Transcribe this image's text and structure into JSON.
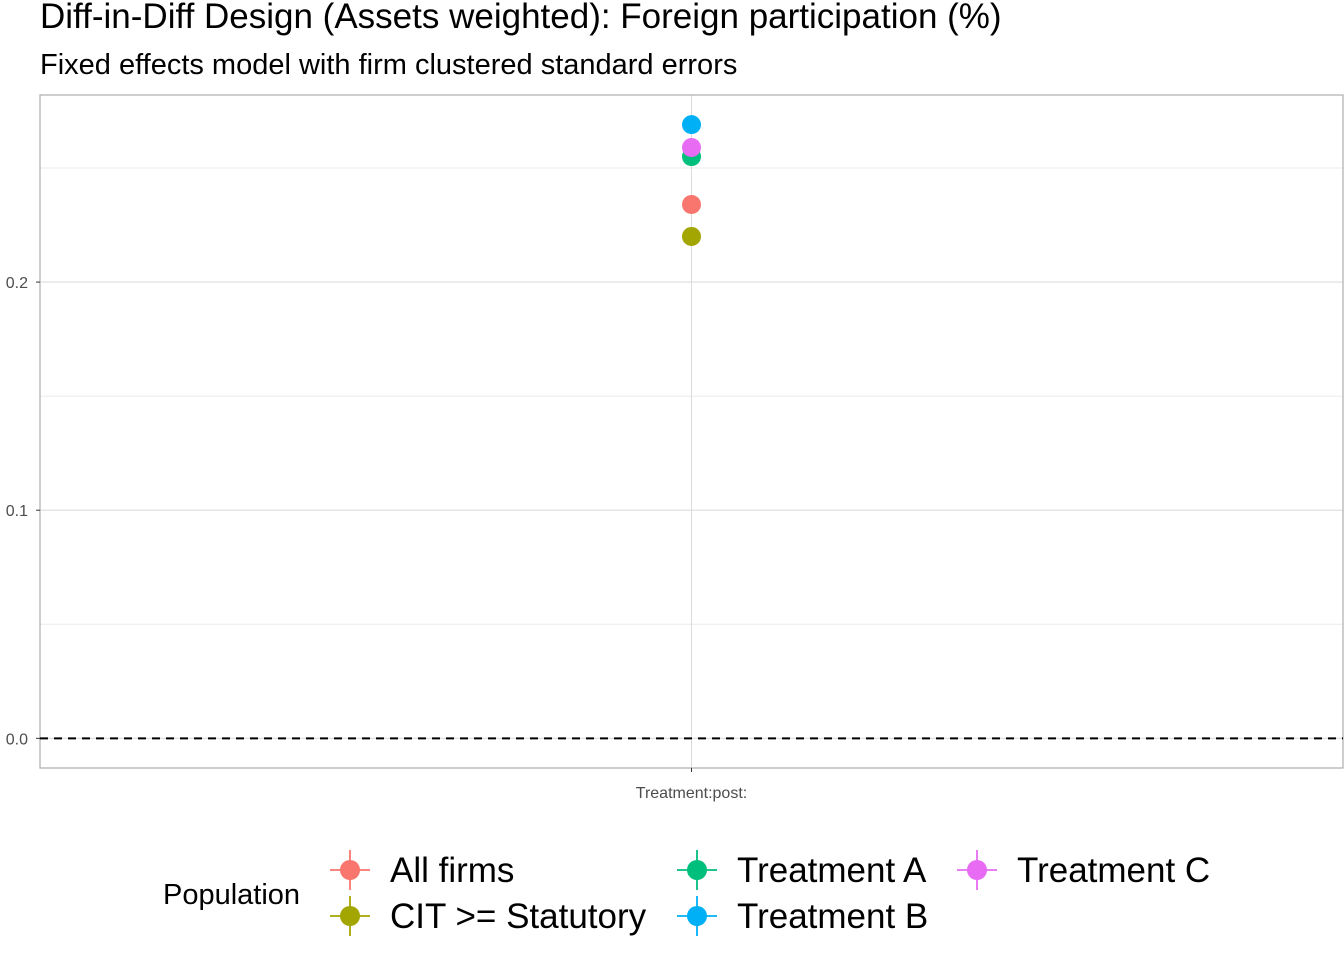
{
  "chart_data": {
    "type": "scatter",
    "title": "Diff-in-Diff Design (Assets weighted): Foreign participation (%)",
    "subtitle": "Fixed effects model with firm clustered standard errors",
    "xlabel": "",
    "ylabel": "",
    "categories": [
      "Treatment:post:"
    ],
    "ylim": [
      -0.013,
      0.282
    ],
    "yticks": [
      0.0,
      0.1,
      0.2
    ],
    "ytick_labels": [
      "0.0",
      "0.1",
      "0.2"
    ],
    "reference_line": {
      "y": 0.0,
      "style": "dashed",
      "color": "#000000"
    },
    "grid": true,
    "legend": {
      "title": "Population",
      "position": "bottom"
    },
    "series": [
      {
        "name": "All firms",
        "color": "#F8766D",
        "x": "Treatment:post:",
        "y": 0.234
      },
      {
        "name": "CIT >= Statutory",
        "color": "#A3A500",
        "x": "Treatment:post:",
        "y": 0.22
      },
      {
        "name": "Treatment A",
        "color": "#00BF7D",
        "x": "Treatment:post:",
        "y": 0.255
      },
      {
        "name": "Treatment B",
        "color": "#00B0F6",
        "x": "Treatment:post:",
        "y": 0.269
      },
      {
        "name": "Treatment C",
        "color": "#E76BF3",
        "x": "Treatment:post:",
        "y": 0.259
      }
    ]
  }
}
